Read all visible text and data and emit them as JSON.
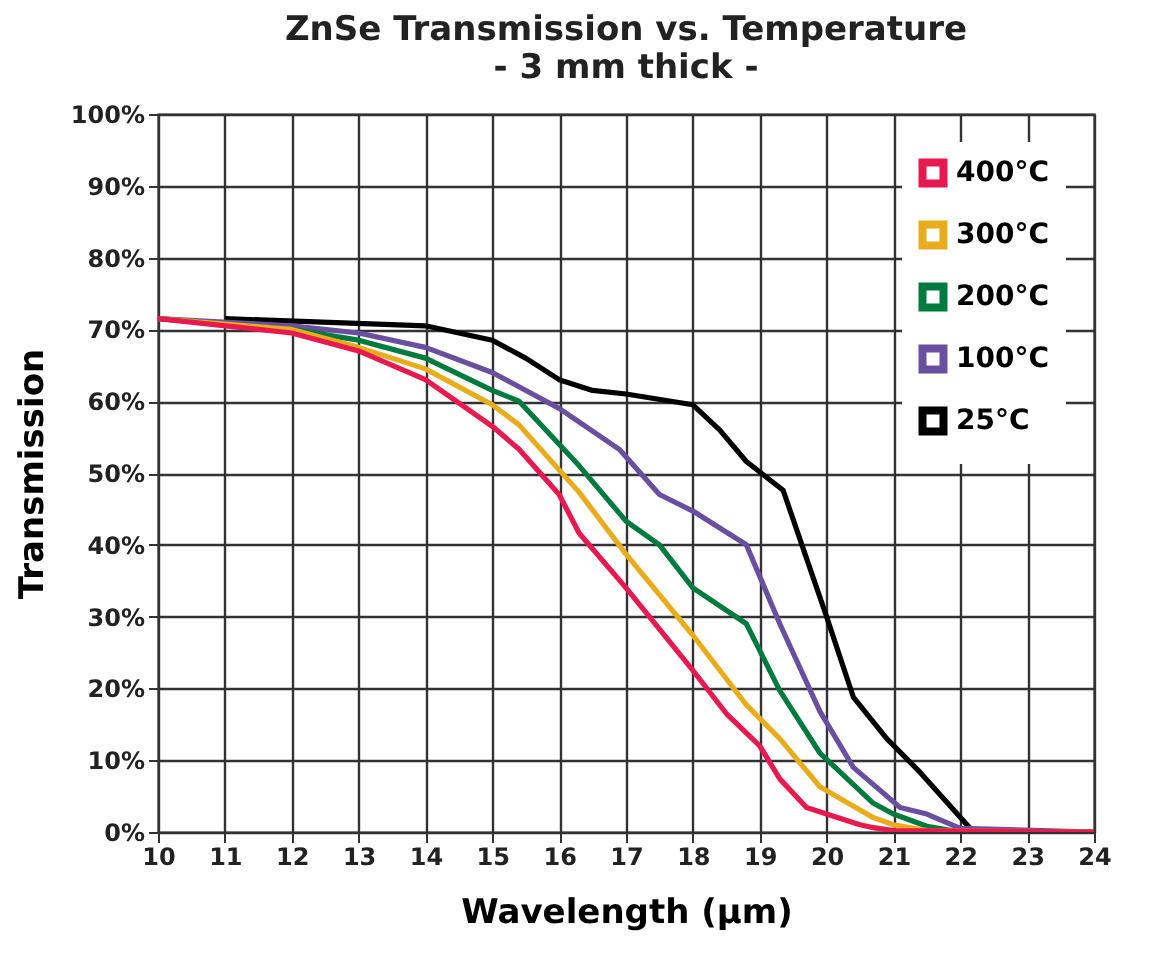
{
  "chart_data": {
    "type": "line",
    "title": "ZnSe Transmission vs. Temperature",
    "subtitle": "- 3 mm thick -",
    "xlabel": "Wavelength (μm)",
    "ylabel": "Transmission",
    "xlim": [
      10,
      24
    ],
    "xticks": [
      10,
      11,
      12,
      13,
      14,
      15,
      16,
      17,
      18,
      19,
      20,
      21,
      22,
      23,
      24
    ],
    "ylim": [
      0,
      100
    ],
    "yticks": [
      {
        "value": 0,
        "label": "0%"
      },
      {
        "value": 10,
        "label": "10%"
      },
      {
        "value": 20,
        "label": "20%"
      },
      {
        "value": 30,
        "label": "30%"
      },
      {
        "value": 40,
        "label": "40%"
      },
      {
        "value": 50,
        "label": "50%"
      },
      {
        "value": 60,
        "label": "60%"
      },
      {
        "value": 70,
        "label": "70%"
      },
      {
        "value": 80,
        "label": "80%"
      },
      {
        "value": 90,
        "label": "90%"
      },
      {
        "value": 100,
        "label": "100%"
      }
    ],
    "grid": true,
    "legend": "top right",
    "marker": "none",
    "line_style": "solid",
    "series": [
      {
        "name": "400°C",
        "color": "#e8194f",
        "x": [
          10,
          12,
          13,
          14,
          15,
          15.4,
          16,
          16.3,
          17,
          18,
          18.5,
          19,
          19.3,
          19.7,
          20,
          20.5,
          20.7,
          21,
          24
        ],
        "values": [
          71.5,
          69.5,
          67,
          63,
          56.5,
          53.3,
          47,
          41.6,
          34,
          22.5,
          16.5,
          12,
          7.4,
          3.4,
          2.5,
          1,
          0.6,
          0.2,
          0
        ]
      },
      {
        "name": "300°C",
        "color": "#e8ac1c",
        "x": [
          10,
          12,
          13,
          14,
          15,
          15.4,
          16.3,
          17,
          18,
          18.8,
          19.3,
          19.9,
          20.7,
          21,
          21.5,
          24
        ],
        "values": [
          71.5,
          70,
          67.5,
          64.5,
          59.5,
          56.7,
          47.3,
          38.7,
          27.4,
          17.7,
          13,
          6.3,
          2,
          1,
          0.2,
          0
        ]
      },
      {
        "name": "200°C",
        "color": "#007a3d",
        "x": [
          10,
          12,
          13,
          14,
          15,
          15.4,
          16.3,
          17,
          17.5,
          18,
          18.8,
          19.3,
          19.9,
          20.7,
          21,
          21.5,
          22,
          24
        ],
        "values": [
          71.5,
          70,
          68.5,
          66,
          61.5,
          60,
          51,
          43.3,
          40,
          34,
          29,
          19.7,
          11,
          4,
          2.5,
          0.8,
          0,
          0
        ]
      },
      {
        "name": "100°C",
        "color": "#6a4fa0",
        "x": [
          10,
          12,
          13,
          14,
          15,
          16,
          16.9,
          17.5,
          18,
          18.8,
          19.3,
          19.9,
          20.4,
          21.1,
          21.5,
          22,
          24
        ],
        "values": [
          71.5,
          70.5,
          69.5,
          67.5,
          64,
          59,
          53.3,
          47,
          44.7,
          40,
          29,
          16.8,
          9,
          3.4,
          2.5,
          0.5,
          0
        ]
      },
      {
        "name": "25°C",
        "color": "#000000",
        "x": [
          11,
          14,
          15,
          15.5,
          16,
          16.5,
          17,
          18,
          18.4,
          18.8,
          19.35,
          20,
          20.4,
          20.9,
          21.4,
          22.1,
          22.2
        ],
        "values": [
          71.5,
          70.5,
          68.5,
          66,
          63,
          61.5,
          61,
          59.5,
          56,
          51.6,
          47.6,
          30,
          18.8,
          13,
          8.3,
          1,
          0
        ]
      }
    ]
  }
}
